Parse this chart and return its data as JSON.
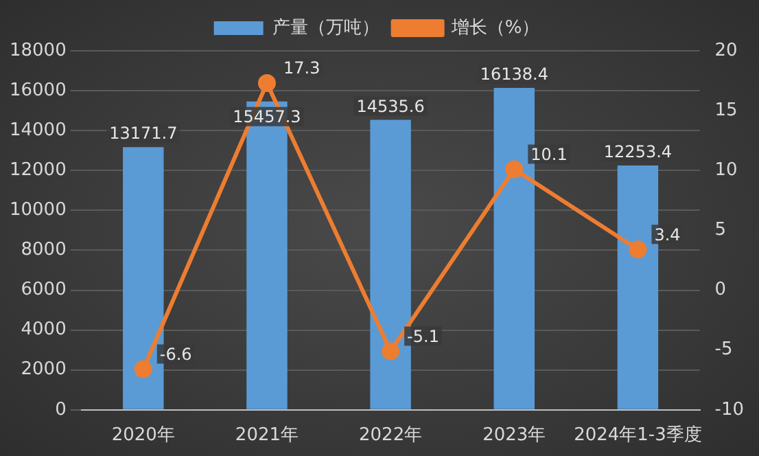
{
  "chart_data": {
    "type": "bar",
    "categories": [
      "2020年",
      "2021年",
      "2022年",
      "2023年",
      "2024年1-3季度"
    ],
    "series": [
      {
        "name": "产量（万吨）",
        "color": "#5b9bd5",
        "values": [
          13171.7,
          15457.3,
          14535.6,
          16138.4,
          12253.4
        ]
      },
      {
        "name": "增长（%）",
        "type": "line",
        "axis": "y2",
        "color": "#ed7d31",
        "values": [
          -6.6,
          17.3,
          -5.1,
          10.1,
          3.4
        ]
      }
    ],
    "ylim": [
      0,
      18000
    ],
    "yticks": [
      0,
      2000,
      4000,
      6000,
      8000,
      10000,
      12000,
      14000,
      16000,
      18000
    ],
    "y2lim": [
      -10,
      20
    ],
    "y2ticks": [
      -10,
      -5,
      0,
      5,
      10,
      15,
      20
    ],
    "grid": "y",
    "legend": "top",
    "marker": "circle",
    "line_style": "solid",
    "data_labels": true
  }
}
